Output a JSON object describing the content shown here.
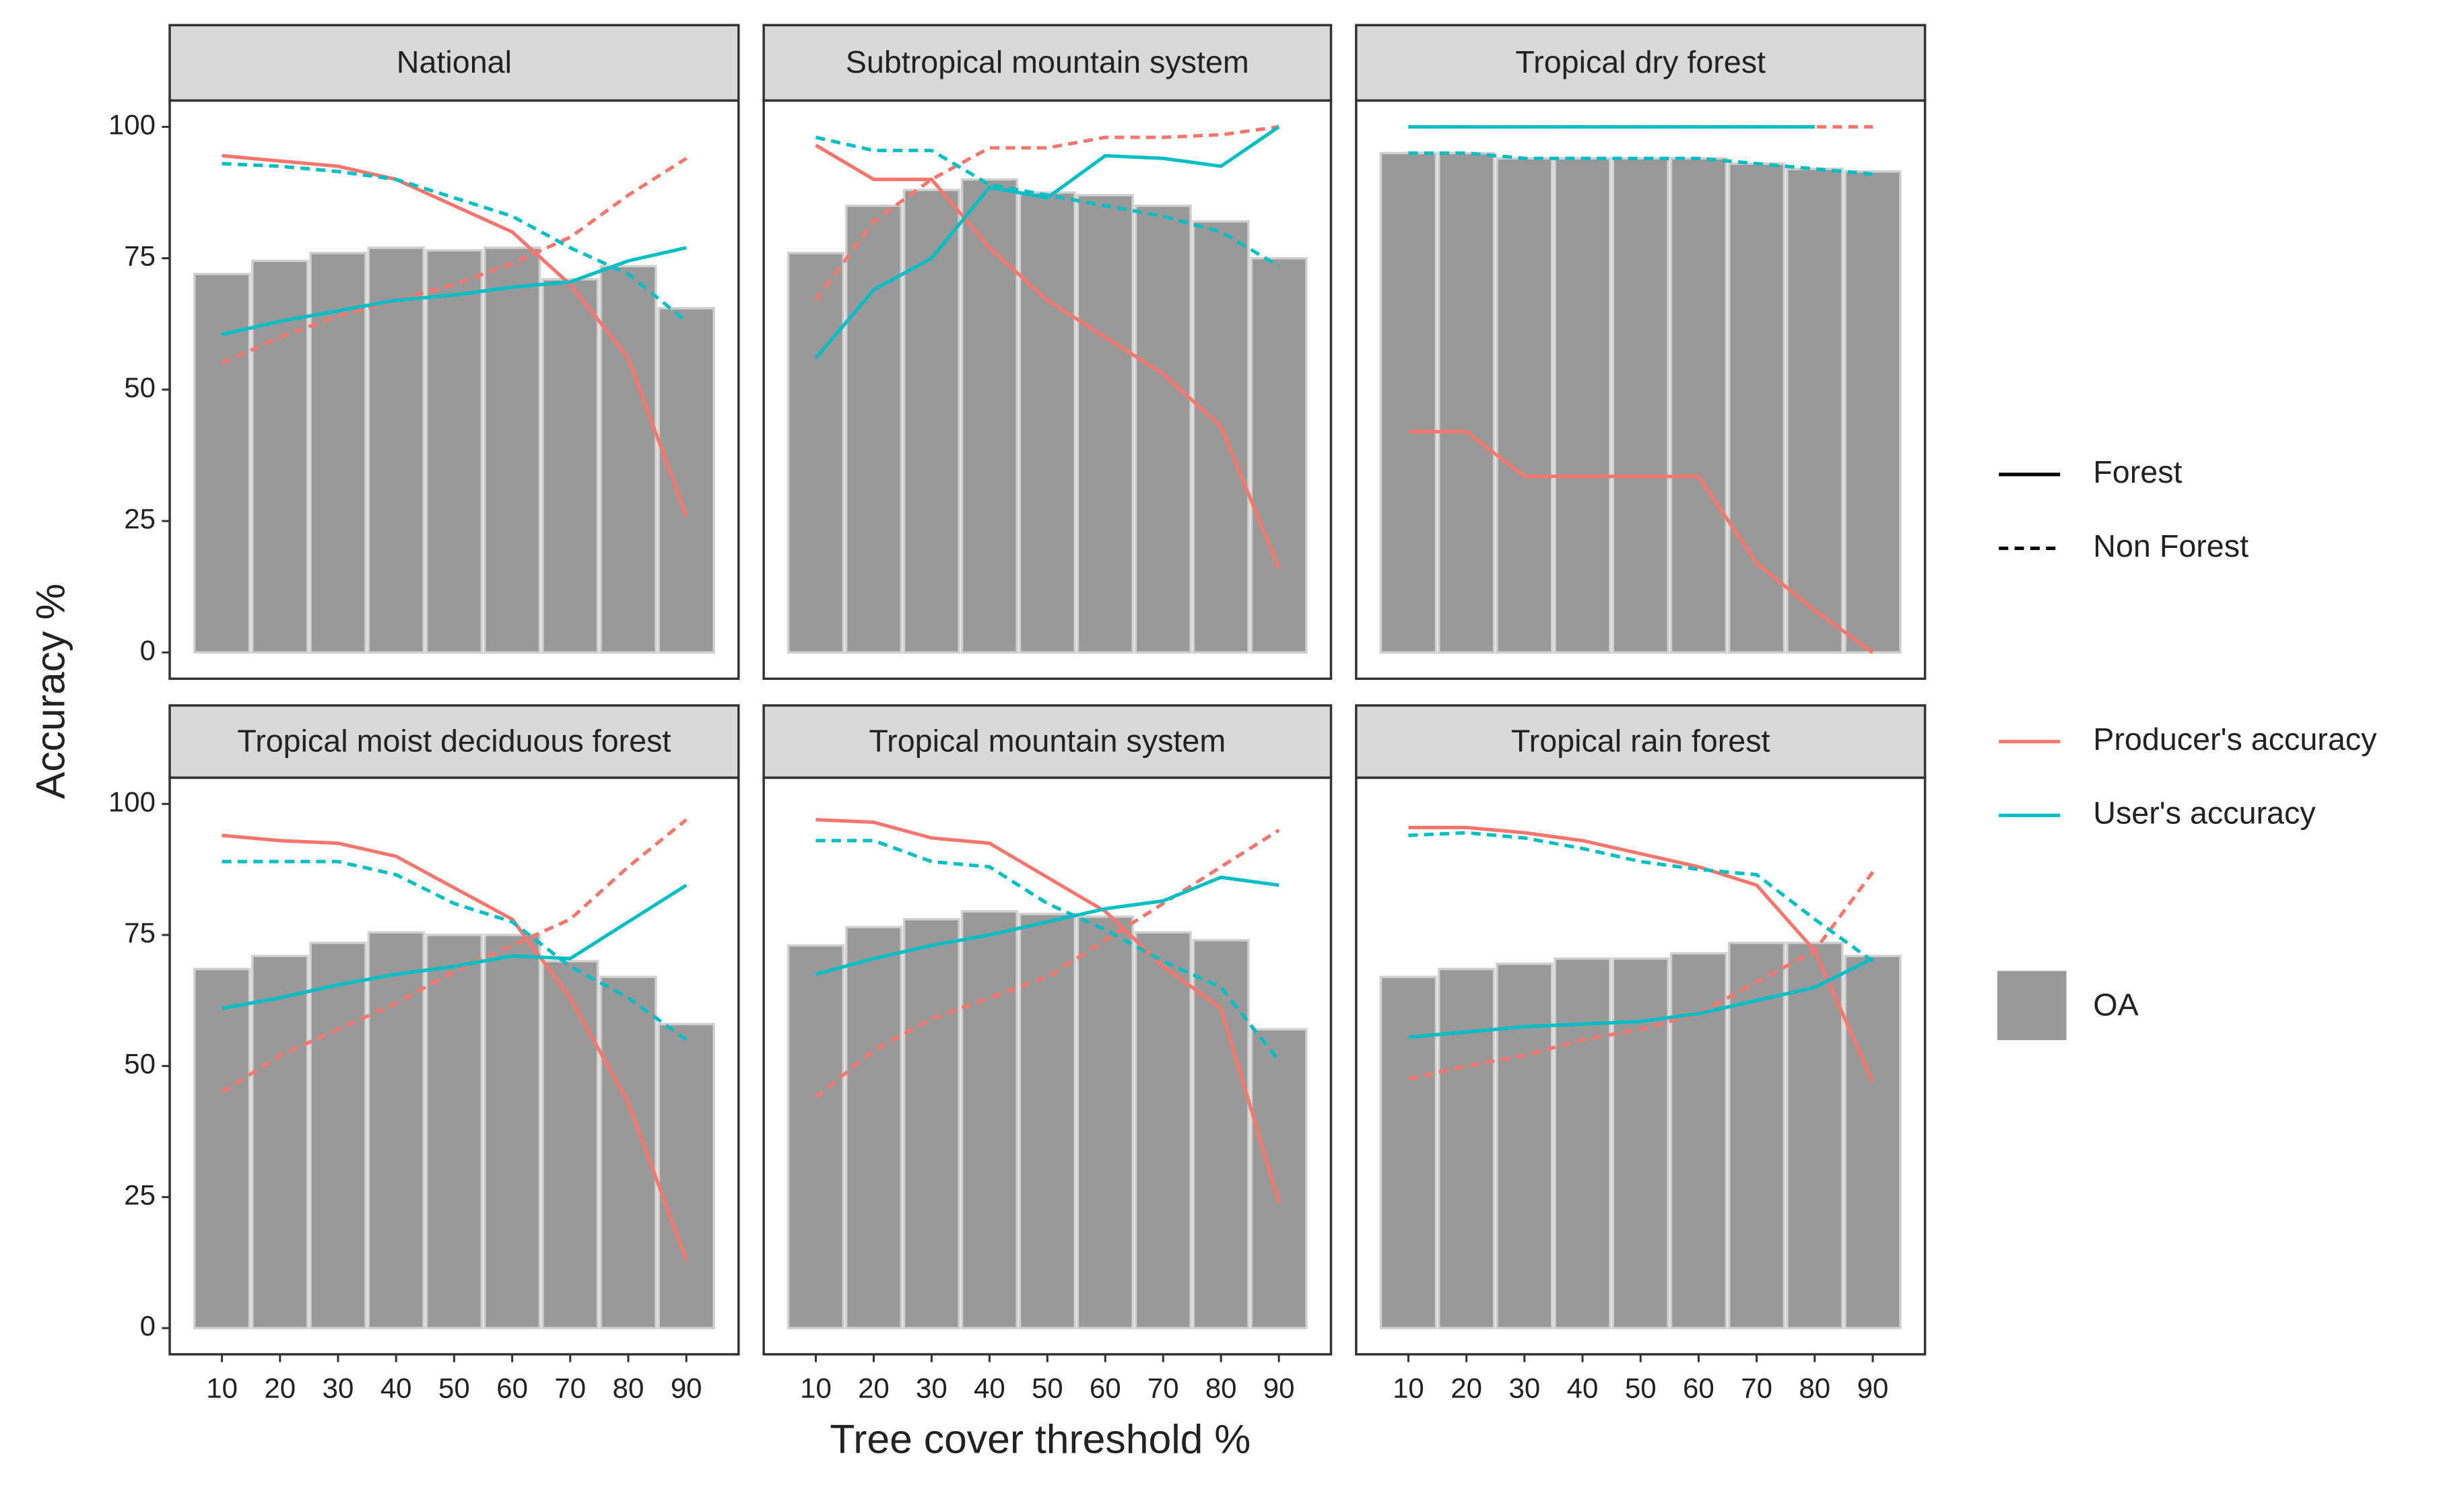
{
  "chart_data": [
    {
      "type": "bar-line",
      "title": "National",
      "x": [
        10,
        20,
        30,
        40,
        50,
        60,
        70,
        80,
        90
      ],
      "bars": [
        72,
        74.5,
        76,
        77,
        76.5,
        77,
        71,
        73.5,
        65.5
      ],
      "series": [
        {
          "color": "#f8766d",
          "dash": "solid",
          "values": [
            94.5,
            93.5,
            92.5,
            90,
            85,
            80,
            70,
            56,
            26
          ]
        },
        {
          "color": "#f8766d",
          "dash": "dashed",
          "values": [
            55,
            60,
            64,
            67,
            70,
            74,
            79,
            87,
            94
          ]
        },
        {
          "color": "#00bfc4",
          "dash": "solid",
          "values": [
            60.5,
            63,
            65,
            67,
            68,
            69.5,
            70.5,
            74.5,
            77
          ]
        },
        {
          "color": "#00bfc4",
          "dash": "dashed",
          "values": [
            93,
            92.5,
            91.5,
            90,
            86.5,
            83,
            77,
            72,
            63
          ]
        }
      ]
    },
    {
      "type": "bar-line",
      "title": "Subtropical mountain system",
      "x": [
        10,
        20,
        30,
        40,
        50,
        60,
        70,
        80,
        90
      ],
      "bars": [
        76,
        85,
        88,
        90,
        87.5,
        87,
        85,
        82,
        75
      ],
      "series": [
        {
          "color": "#f8766d",
          "dash": "solid",
          "values": [
            96.5,
            90,
            90,
            77,
            67,
            60,
            53,
            43,
            16
          ]
        },
        {
          "color": "#f8766d",
          "dash": "dashed",
          "values": [
            67,
            82,
            90,
            96,
            96,
            98,
            98,
            98.5,
            100
          ]
        },
        {
          "color": "#00bfc4",
          "dash": "solid",
          "values": [
            56,
            69,
            75,
            88.5,
            86.5,
            94.5,
            94,
            92.5,
            100
          ]
        },
        {
          "color": "#00bfc4",
          "dash": "dashed",
          "values": [
            98,
            95.5,
            95.5,
            89,
            87,
            85,
            83,
            80,
            73.5
          ]
        }
      ]
    },
    {
      "type": "bar-line",
      "title": "Tropical dry forest",
      "x": [
        10,
        20,
        30,
        40,
        50,
        60,
        70,
        80,
        90
      ],
      "bars": [
        95,
        95,
        94,
        94,
        94,
        94,
        93,
        92,
        91.5
      ],
      "series": [
        {
          "color": "#f8766d",
          "dash": "solid",
          "values": [
            42,
            42,
            33.5,
            33.5,
            33.5,
            33.5,
            17,
            8,
            0
          ]
        },
        {
          "color": "#f8766d",
          "dash": "dashed",
          "values": [
            100,
            100,
            100,
            100,
            100,
            100,
            100,
            100,
            100
          ]
        },
        {
          "color": "#00bfc4",
          "dash": "solid",
          "values": [
            100,
            100,
            100,
            100,
            100,
            100,
            100,
            100,
            null
          ]
        },
        {
          "color": "#00bfc4",
          "dash": "dashed",
          "values": [
            95,
            95,
            94,
            94,
            94,
            94,
            93,
            92,
            91
          ]
        }
      ]
    },
    {
      "type": "bar-line",
      "title": "Tropical moist deciduous forest",
      "x": [
        10,
        20,
        30,
        40,
        50,
        60,
        70,
        80,
        90
      ],
      "bars": [
        68.5,
        71,
        73.5,
        75.5,
        75,
        75,
        70,
        67,
        58
      ],
      "series": [
        {
          "color": "#f8766d",
          "dash": "solid",
          "values": [
            94,
            93,
            92.5,
            90,
            84,
            78,
            63,
            43,
            13
          ]
        },
        {
          "color": "#f8766d",
          "dash": "dashed",
          "values": [
            45,
            52,
            57,
            62,
            68,
            73,
            78,
            88,
            97
          ]
        },
        {
          "color": "#00bfc4",
          "dash": "solid",
          "values": [
            61,
            63,
            65.5,
            67.5,
            69,
            71,
            70.5,
            77.5,
            84.5
          ]
        },
        {
          "color": "#00bfc4",
          "dash": "dashed",
          "values": [
            89,
            89,
            89,
            86.5,
            81,
            77.5,
            69,
            63,
            55
          ]
        }
      ]
    },
    {
      "type": "bar-line",
      "title": "Tropical mountain system",
      "x": [
        10,
        20,
        30,
        40,
        50,
        60,
        70,
        80,
        90
      ],
      "bars": [
        73,
        76.5,
        78,
        79.5,
        79,
        78.5,
        75.5,
        74,
        57
      ],
      "series": [
        {
          "color": "#f8766d",
          "dash": "solid",
          "values": [
            97,
            96.5,
            93.5,
            92.5,
            86,
            79.5,
            69,
            61,
            24
          ]
        },
        {
          "color": "#f8766d",
          "dash": "dashed",
          "values": [
            44,
            53,
            59,
            63,
            67,
            74,
            81,
            88,
            95
          ]
        },
        {
          "color": "#00bfc4",
          "dash": "solid",
          "values": [
            67.5,
            70.5,
            73,
            75,
            77.5,
            80,
            81.5,
            86,
            84.5
          ]
        },
        {
          "color": "#00bfc4",
          "dash": "dashed",
          "values": [
            93,
            93,
            89,
            88,
            81,
            76,
            70,
            65,
            51
          ]
        }
      ]
    },
    {
      "type": "bar-line",
      "title": "Tropical rain forest",
      "x": [
        10,
        20,
        30,
        40,
        50,
        60,
        70,
        80,
        90
      ],
      "bars": [
        67,
        68.5,
        69.5,
        70.5,
        70.5,
        71.5,
        73.5,
        73.5,
        71
      ],
      "series": [
        {
          "color": "#f8766d",
          "dash": "solid",
          "values": [
            95.5,
            95.5,
            94.5,
            93,
            90.5,
            88,
            84.5,
            72,
            47
          ]
        },
        {
          "color": "#f8766d",
          "dash": "dashed",
          "values": [
            47.5,
            50,
            52,
            55,
            57,
            60,
            66,
            72,
            87
          ]
        },
        {
          "color": "#00bfc4",
          "dash": "solid",
          "values": [
            55.5,
            56.5,
            57.5,
            58,
            58.5,
            60,
            62.5,
            65,
            70.5
          ]
        },
        {
          "color": "#00bfc4",
          "dash": "dashed",
          "values": [
            94,
            94.5,
            93.5,
            91.5,
            89,
            87.5,
            86.5,
            78,
            70
          ]
        }
      ]
    }
  ],
  "axes": {
    "xlabel": "Tree cover threshold %",
    "ylabel": "Accuracy %",
    "xlim": [
      1,
      99
    ],
    "ylim": [
      -5,
      105
    ],
    "xticks": [
      10,
      20,
      30,
      40,
      50,
      60,
      70,
      80,
      90
    ],
    "yticks": [
      0,
      25,
      50,
      75,
      100
    ]
  },
  "legend": {
    "linetype": [
      {
        "label": "Forest",
        "dash": "solid"
      },
      {
        "label": "Non Forest",
        "dash": "dashed"
      }
    ],
    "color": [
      {
        "label": "Producer's accuracy",
        "color": "#f8766d"
      },
      {
        "label": "User's accuracy",
        "color": "#00bfc4"
      }
    ],
    "fill": {
      "label": "OA",
      "color": "#999999"
    }
  }
}
